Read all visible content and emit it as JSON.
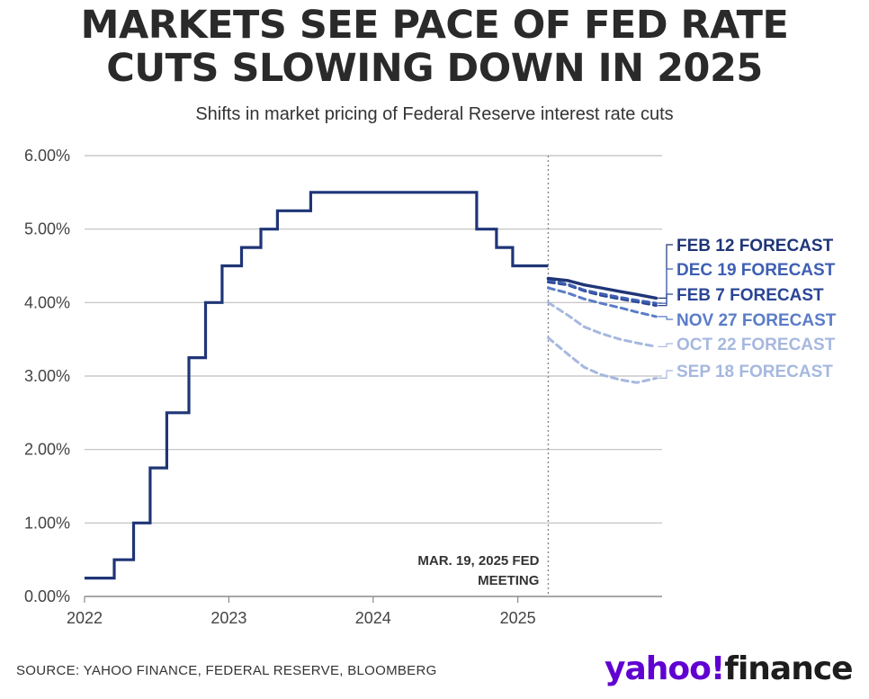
{
  "title_lines": [
    "MARKETS SEE PACE OF FED RATE",
    "CUTS SLOWING DOWN IN 2025"
  ],
  "subtitle": "Shifts in market pricing of Federal Reserve interest rate cuts",
  "source": "SOURCE: YAHOO FINANCE, FEDERAL RESERVE, BLOOMBERG",
  "logo": {
    "yahoo": "yahoo!",
    "finance": "finance"
  },
  "chart_data": {
    "type": "line",
    "title": "MARKETS SEE PACE OF FED RATE CUTS SLOWING DOWN IN 2025",
    "subtitle": "Shifts in market pricing of Federal Reserve interest rate cuts",
    "xlim": [
      "2022-01-01",
      "2026-01-01"
    ],
    "ylim": [
      0,
      6
    ],
    "x_ticks": [
      "2022",
      "2023",
      "2024",
      "2025"
    ],
    "y_ticks": [
      "0.00%",
      "1.00%",
      "2.00%",
      "3.00%",
      "4.00%",
      "5.00%",
      "6.00%"
    ],
    "grid": true,
    "colors": {
      "dark": "#1f3577",
      "mid": "#3f5fb3",
      "light1": "#7f97cf",
      "light2": "#a6b8df",
      "grid": "#bfbfbf"
    },
    "annotation": {
      "lines": [
        "MAR. 19, 2025 FED",
        "MEETING"
      ],
      "x": "2025-03-19"
    },
    "historical": {
      "name": "",
      "style": "step",
      "color": "#1f3577",
      "points": [
        [
          "2022-01-01",
          0.25
        ],
        [
          "2022-03-17",
          0.5
        ],
        [
          "2022-05-05",
          1.0
        ],
        [
          "2022-06-16",
          1.75
        ],
        [
          "2022-07-28",
          2.5
        ],
        [
          "2022-09-22",
          3.25
        ],
        [
          "2022-11-03",
          4.0
        ],
        [
          "2022-12-15",
          4.5
        ],
        [
          "2023-02-02",
          4.75
        ],
        [
          "2023-03-23",
          5.0
        ],
        [
          "2023-05-04",
          5.25
        ],
        [
          "2023-07-27",
          5.5
        ],
        [
          "2024-09-19",
          5.0
        ],
        [
          "2024-11-08",
          4.75
        ],
        [
          "2024-12-19",
          4.5
        ],
        [
          "2025-03-19",
          4.5
        ]
      ]
    },
    "series": [
      {
        "name": "FEB 12 FORECAST",
        "color": "#1f3577",
        "dashed": false,
        "points": [
          [
            "2025-03-19",
            4.33
          ],
          [
            "2025-05-07",
            4.3
          ],
          [
            "2025-06-18",
            4.24
          ],
          [
            "2025-07-30",
            4.2
          ],
          [
            "2025-09-17",
            4.15
          ],
          [
            "2025-10-29",
            4.11
          ],
          [
            "2025-12-17",
            4.06
          ]
        ]
      },
      {
        "name": "DEC 19 FORECAST",
        "color": "#3f5fb3",
        "dashed": true,
        "points": [
          [
            "2025-03-19",
            4.31
          ],
          [
            "2025-05-07",
            4.25
          ],
          [
            "2025-06-18",
            4.17
          ],
          [
            "2025-07-30",
            4.12
          ],
          [
            "2025-09-17",
            4.07
          ],
          [
            "2025-10-29",
            4.03
          ],
          [
            "2025-12-17",
            3.99
          ]
        ]
      },
      {
        "name": "FEB 7 FORECAST",
        "color": "#2a4595",
        "dashed": true,
        "points": [
          [
            "2025-03-19",
            4.28
          ],
          [
            "2025-05-07",
            4.24
          ],
          [
            "2025-06-18",
            4.16
          ],
          [
            "2025-07-30",
            4.1
          ],
          [
            "2025-09-17",
            4.05
          ],
          [
            "2025-10-29",
            4.01
          ],
          [
            "2025-12-17",
            3.96
          ]
        ]
      },
      {
        "name": "NOV 27 FORECAST",
        "color": "#5b7cc8",
        "dashed": true,
        "points": [
          [
            "2025-03-19",
            4.2
          ],
          [
            "2025-05-07",
            4.13
          ],
          [
            "2025-06-18",
            4.05
          ],
          [
            "2025-07-30",
            3.99
          ],
          [
            "2025-09-17",
            3.93
          ],
          [
            "2025-10-29",
            3.87
          ],
          [
            "2025-12-17",
            3.81
          ]
        ]
      },
      {
        "name": "OCT 22 FORECAST",
        "color": "#a6b8df",
        "dashed": true,
        "points": [
          [
            "2025-03-19",
            4.0
          ],
          [
            "2025-05-07",
            3.83
          ],
          [
            "2025-06-18",
            3.67
          ],
          [
            "2025-07-30",
            3.58
          ],
          [
            "2025-09-17",
            3.5
          ],
          [
            "2025-10-29",
            3.45
          ],
          [
            "2025-12-17",
            3.4
          ]
        ]
      },
      {
        "name": "SEP 18 FORECAST",
        "color": "#a6b8df",
        "dashed": true,
        "points": [
          [
            "2025-03-19",
            3.52
          ],
          [
            "2025-05-07",
            3.3
          ],
          [
            "2025-06-18",
            3.12
          ],
          [
            "2025-07-30",
            3.02
          ],
          [
            "2025-09-17",
            2.95
          ],
          [
            "2025-10-29",
            2.91
          ],
          [
            "2025-12-17",
            2.97
          ]
        ]
      }
    ]
  }
}
